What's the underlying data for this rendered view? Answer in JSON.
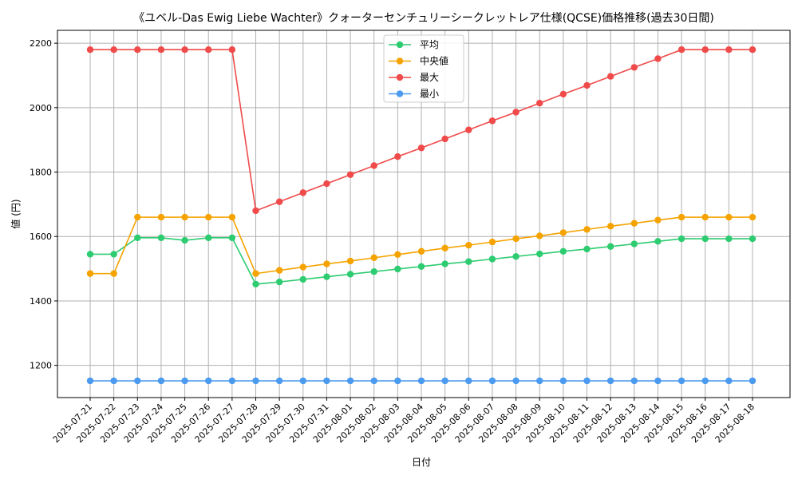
{
  "chart_data": {
    "type": "line",
    "title": "《ユベル-Das Ewig Liebe Wachter》クォーターセンチュリーシークレットレア仕様(QCSE)価格推移(過去30日間)",
    "xlabel": "日付",
    "ylabel": "値 (円)",
    "ylim": [
      1100,
      2240
    ],
    "yticks": [
      1200,
      1400,
      1600,
      1800,
      2000,
      2200
    ],
    "grid": true,
    "legend_position": "top-center",
    "x": [
      "2025-07-21",
      "2025-07-22",
      "2025-07-23",
      "2025-07-24",
      "2025-07-25",
      "2025-07-26",
      "2025-07-27",
      "2025-07-28",
      "2025-07-29",
      "2025-07-30",
      "2025-07-31",
      "2025-08-01",
      "2025-08-02",
      "2025-08-03",
      "2025-08-04",
      "2025-08-05",
      "2025-08-06",
      "2025-08-07",
      "2025-08-08",
      "2025-08-09",
      "2025-08-10",
      "2025-08-11",
      "2025-08-12",
      "2025-08-13",
      "2025-08-14",
      "2025-08-15",
      "2025-08-16",
      "2025-08-17",
      "2025-08-18"
    ],
    "series": [
      {
        "name": "平均",
        "color": "#2ecc71",
        "values": [
          1545,
          1545,
          1596,
          1596,
          1588,
          1596,
          1596,
          1452,
          1459,
          1467,
          1475,
          1483,
          1491,
          1499,
          1507,
          1515,
          1522,
          1530,
          1538,
          1546,
          1554,
          1561,
          1569,
          1577,
          1585,
          1593,
          1593,
          1593,
          1593
        ]
      },
      {
        "name": "中央値",
        "color": "#f5a300",
        "values": [
          1485,
          1485,
          1660,
          1660,
          1660,
          1660,
          1660,
          1485,
          1495,
          1505,
          1515,
          1524,
          1534,
          1544,
          1554,
          1564,
          1573,
          1583,
          1593,
          1602,
          1612,
          1622,
          1632,
          1641,
          1651,
          1660,
          1660,
          1660,
          1660
        ]
      },
      {
        "name": "最大",
        "color": "#f04a4a",
        "values": [
          2180,
          2180,
          2180,
          2180,
          2180,
          2180,
          2180,
          1680,
          1708,
          1736,
          1764,
          1792,
          1820,
          1848,
          1875,
          1903,
          1931,
          1959,
          1986,
          2014,
          2042,
          2069,
          2097,
          2125,
          2152,
          2180,
          2180,
          2180,
          2180
        ]
      },
      {
        "name": "最小",
        "color": "#4a9af0",
        "values": [
          1152,
          1152,
          1152,
          1152,
          1152,
          1152,
          1152,
          1152,
          1152,
          1152,
          1152,
          1152,
          1152,
          1152,
          1152,
          1152,
          1152,
          1152,
          1152,
          1152,
          1152,
          1152,
          1152,
          1152,
          1152,
          1152,
          1152,
          1152,
          1152
        ]
      }
    ]
  }
}
